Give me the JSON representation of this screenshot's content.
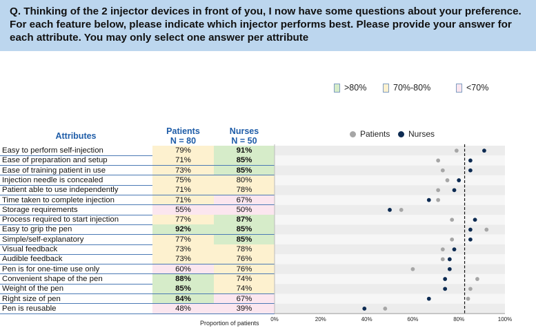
{
  "question": "Q. Thinking of the 2 injector devices in front of you, I now have some questions about your preference. For each feature below, please indicate which injector performs best. Please provide your answer for each attribute. You may only select one answer per attribute",
  "range_legend": [
    {
      "label": ">80%",
      "color": "#d6ecc9"
    },
    {
      "label": "70%-80%",
      "color": "#fdf1cf"
    },
    {
      "label": "<70%",
      "color": "#fbe6ef"
    }
  ],
  "table_headers": {
    "attributes": "Attributes",
    "patients_line1": "Patients",
    "patients_line2": "N = 80",
    "nurses_line1": "Nurses",
    "nurses_line2": "N = 50"
  },
  "colors": {
    "green": "#d6ecc9",
    "yellow": "#fdf1cf",
    "pink": "#fbe6ef",
    "patients_dot": "#a6a6a6",
    "nurses_dot": "#0d2b52",
    "header_blue": "#1f5da8",
    "plot_band_dark": "#ececec",
    "plot_band_light": "#f6f6f6"
  },
  "chart_data": {
    "type": "scatter",
    "xlabel": "Proportion of patients",
    "xlim": [
      0,
      100
    ],
    "xticks": [
      "0%",
      "20%",
      "40%",
      "60%",
      "80%",
      "100%"
    ],
    "reference_line": 82.5,
    "legend": [
      "Patients",
      "Nurses"
    ],
    "categories": [
      "Easy to perform self-injection",
      "Ease of preparation and setup",
      "Ease of training patient in use",
      "Injection needle is concealed",
      "Patient able to use independently",
      "Time taken to complete injection",
      "Storage requirements",
      "Process required to start injection",
      "Easy to grip the pen",
      "Simple/self-explanatory",
      "Visual feedback",
      "Audible feedback",
      "Pen is for one-time use only",
      "Convenient shape of the pen",
      "Weight of the pen",
      "Right size of pen",
      "Pen is reusable"
    ],
    "series": [
      {
        "name": "Patients",
        "values": [
          79,
          71,
          73,
          75,
          71,
          71,
          55,
          77,
          92,
          77,
          73,
          73,
          60,
          88,
          85,
          84,
          48
        ]
      },
      {
        "name": "Nurses",
        "values": [
          91,
          85,
          85,
          80,
          78,
          67,
          50,
          87,
          85,
          85,
          78,
          76,
          76,
          74,
          74,
          67,
          39
        ]
      }
    ]
  }
}
